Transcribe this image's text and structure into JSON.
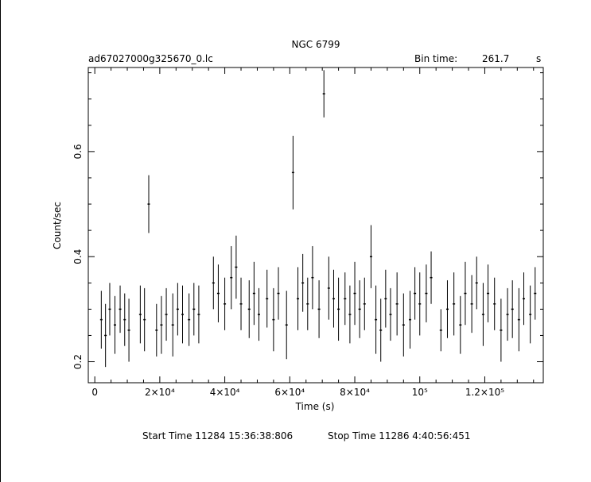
{
  "chart_data": {
    "type": "line",
    "title": "NGC 6799",
    "file_label": "ad67027000g325670_0.lc",
    "bin_time_label": "Bin time:",
    "bin_time_value": "261.7",
    "bin_time_unit": "s",
    "xlabel": "Time (s)",
    "ylabel": "Count/sec",
    "xlim": [
      -2000,
      138000
    ],
    "ylim": [
      0.16,
      0.76
    ],
    "x_ticks": [
      {
        "value": 0,
        "label": "0"
      },
      {
        "value": 20000,
        "label": "2×10⁴"
      },
      {
        "value": 40000,
        "label": "4×10⁴"
      },
      {
        "value": 60000,
        "label": "6×10⁴"
      },
      {
        "value": 80000,
        "label": "8×10⁴"
      },
      {
        "value": 100000,
        "label": "10⁵"
      },
      {
        "value": 120000,
        "label": "1.2×10⁵"
      }
    ],
    "y_ticks": [
      {
        "value": 0.2,
        "label": "0.2"
      },
      {
        "value": 0.4,
        "label": "0.4"
      },
      {
        "value": 0.6,
        "label": "0.6"
      }
    ],
    "series": [
      {
        "x": [
          2000,
          3300,
          4600,
          6200,
          7800,
          9200,
          10500,
          14000,
          15300,
          16600,
          19000,
          20500,
          22000,
          24000,
          25500,
          27000,
          29000,
          30500,
          32000,
          36500,
          38000,
          40000,
          42000,
          43500,
          45000,
          47500,
          49000,
          50500,
          53000,
          55000,
          56500,
          59000,
          61000,
          62500,
          64000,
          65500,
          67000,
          69000,
          70500,
          72000,
          73500,
          75000,
          77000,
          78500,
          80000,
          81500,
          83000,
          85000,
          86500,
          88000,
          89500,
          91000,
          93000,
          95000,
          97000,
          98500,
          100000,
          102000,
          103500,
          106500,
          108500,
          110500,
          112500,
          114000,
          116000,
          117500,
          119500,
          121000,
          123000,
          125000,
          127000,
          128500,
          130500,
          132000,
          134000,
          135500
        ],
        "y": [
          0.28,
          0.25,
          0.3,
          0.27,
          0.3,
          0.28,
          0.26,
          0.29,
          0.28,
          0.5,
          0.26,
          0.27,
          0.29,
          0.27,
          0.3,
          0.29,
          0.28,
          0.3,
          0.29,
          0.35,
          0.33,
          0.31,
          0.36,
          0.38,
          0.31,
          0.3,
          0.33,
          0.29,
          0.32,
          0.28,
          0.33,
          0.27,
          0.56,
          0.32,
          0.35,
          0.31,
          0.36,
          0.3,
          0.71,
          0.34,
          0.32,
          0.3,
          0.32,
          0.29,
          0.33,
          0.3,
          0.31,
          0.4,
          0.28,
          0.26,
          0.32,
          0.29,
          0.31,
          0.27,
          0.28,
          0.33,
          0.31,
          0.33,
          0.36,
          0.26,
          0.3,
          0.31,
          0.27,
          0.33,
          0.31,
          0.35,
          0.29,
          0.33,
          0.31,
          0.26,
          0.29,
          0.3,
          0.28,
          0.32,
          0.29,
          0.33
        ],
        "err": [
          0.055,
          0.06,
          0.05,
          0.055,
          0.045,
          0.05,
          0.06,
          0.055,
          0.06,
          0.055,
          0.05,
          0.055,
          0.05,
          0.06,
          0.05,
          0.055,
          0.05,
          0.05,
          0.055,
          0.05,
          0.055,
          0.05,
          0.06,
          0.06,
          0.05,
          0.055,
          0.06,
          0.05,
          0.055,
          0.06,
          0.05,
          0.065,
          0.07,
          0.06,
          0.055,
          0.05,
          0.06,
          0.055,
          0.045,
          0.06,
          0.055,
          0.06,
          0.05,
          0.055,
          0.06,
          0.055,
          0.05,
          0.06,
          0.065,
          0.06,
          0.055,
          0.05,
          0.06,
          0.06,
          0.055,
          0.05,
          0.06,
          0.055,
          0.05,
          0.04,
          0.055,
          0.06,
          0.055,
          0.06,
          0.055,
          0.05,
          0.06,
          0.055,
          0.05,
          0.06,
          0.05,
          0.055,
          0.06,
          0.05,
          0.055,
          0.05
        ]
      }
    ],
    "grid": false
  },
  "footer": {
    "start_label": "Start Time 11284  15:36:38:806",
    "stop_label": "Stop Time 11286   4:40:56:451"
  }
}
